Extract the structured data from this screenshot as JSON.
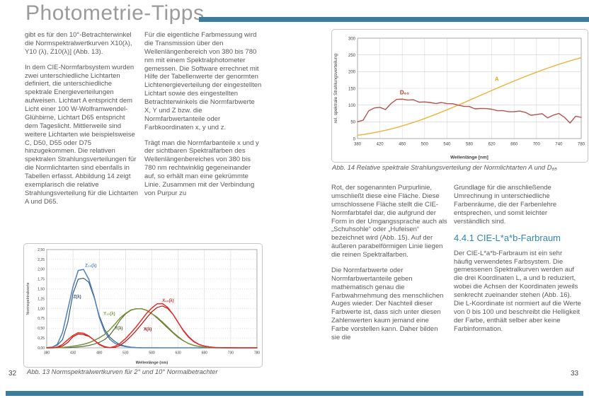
{
  "page_title": "Photometrie-Tipps",
  "accent_color": "#3a7d9d",
  "left_page": {
    "page_number": "32",
    "col1_paragraphs": [
      "gibt es für den 10°-Betrachterwinkel die Normspektralwertkurven X10(λ), Y10 (λ), Z10(λ)] (Abb. 13).",
      "In dem CIE-Normfarbsystem wurden zwei unterschiedliche Lichtarten definiert, die unterschiedliche spektrale Energieverteilungen aufweisen. Lichtart A entspricht dem Licht einer 100 W-Wolframwendel-Glühbirne, Lichtart D65 entspricht dem Tageslicht. Mittlerweile sind weitere Lichtarten wie beispielsweise C, D50, D55 oder D75 hinzugekommen. Die relativen spektralen Strahlungsverteilungen für die Normlichtarten sind ebenfalls in Tabellen erfasst. Abbildung 14 zeigt exemplarisch die relative Strahlungsverteilung für die Lichtarten A und D65."
    ],
    "col2_paragraphs": [
      "Für die eigentliche Farbmessung wird die Transmission über den Wellenlängenbereich von 380 bis 780 nm mit einem Spektralphotometer gemessen. Die Software errechnet mit Hilfe der Tabellenwerte der genormten Lichtenergieverteilung der eingestellten Lichtart sowie des eingestellten Betrachterwinkels die Normfarbwerte X, Y und Z bzw. die Normfarbwertanteile oder Farbkoordinaten x, y und z.",
      "Trägt man die Normfarbanteile x und y der sichtbaren Spektralfarben des Wellenlängenbereiches von 380 bis 780 nm rechtwinklig gegeneinander auf, so erhält man eine gekrümmte Linie. Zusammen mit der Verbindung von Purpur zu"
    ],
    "fig13_caption": "Abb. 13 Normspektralwertkurven für 2° und 10° Normalbetrachter"
  },
  "right_page": {
    "page_number": "33",
    "fig14_caption": "Abb. 14 Relative spektrale Strahlungsverteilung der Normlichtarten A und D₆₅",
    "col1_paragraphs": [
      "Rot, der sogenannten Purpurlinie, umschließt diese eine Fläche. Diese umschlossene Fläche stellt die CIE-Normfarbtafel dar, die aufgrund der Form in der Umgangssprache auch als „Schuhsohle“ oder „Hufeisen“ bezeichnet wird (Abb. 15). Auf der äußeren parabelförmigen Linie liegen die reinen Spektralfarben.",
      "Die Normfarbwerte oder Normfarbwertanteile geben mathematisch genau die Farbwahrnehmung des menschlichen Auges wieder. Der Nachteil dieser Farbwerte ist, dass sich unter diesen Zahlenwerten kaum jemand eine Farbe vorstellen kann. Daher bilden sie die"
    ],
    "col2_paragraphs_before_heading": [
      "Grundlage für die anschließende Umrechnung in unterschiedliche Farbenräume, die der Farbenlehre entsprechen, und somit leichter verständlich sind."
    ],
    "heading": "4.4.1 CIE-L*a*b-Farbraum",
    "col2_paragraphs_after_heading": [
      "Der CIE-L*a*b-Farbraum ist ein sehr häufig verwendetes Farbsystem. Die gemessenen Spektralkurven werden auf die drei Koordinaten L, a und b reduziert, wobei die Achsen der Koordinaten jeweils senkrecht zueinander stehen (Abb. 16). Die L-Koordinate ist normiert auf die Werte von 0 bis 100 und beschreibt die Helligkeit der Farbe, enthält selber aber keine Farbinformation."
    ]
  },
  "chart_data": [
    {
      "mount": "fig13",
      "type": "line",
      "title": "",
      "xlabel": "Wellenlänge (nm)",
      "ylabel": "Normspektralwerte",
      "xlim": [
        380,
        780
      ],
      "xstep": 50,
      "ylim": [
        0,
        2.5
      ],
      "ystep": 0.25,
      "y_decimals": 2,
      "decimal_comma": true,
      "grid": {
        "h": "dotted",
        "v": "solid"
      },
      "style": {
        "tick_font": 5,
        "axis_font": 5.5,
        "anno_font": 6,
        "margins": {
          "l": 32,
          "r": 7,
          "t": 8,
          "b": 27
        }
      },
      "x": [
        380,
        390,
        400,
        410,
        420,
        430,
        440,
        450,
        460,
        470,
        480,
        490,
        500,
        510,
        520,
        530,
        540,
        550,
        560,
        570,
        580,
        590,
        600,
        610,
        620,
        630,
        640,
        650,
        660,
        670,
        680,
        690,
        700,
        710,
        720,
        730,
        740,
        750,
        760,
        770,
        780
      ],
      "series": [
        {
          "name": "Z(λ) 2°",
          "color": "#2c4d75",
          "w": 1.1,
          "values": [
            0.0065,
            0.0201,
            0.0679,
            0.2074,
            0.6456,
            1.3856,
            1.7471,
            1.7721,
            1.6692,
            1.2876,
            0.813,
            0.4652,
            0.272,
            0.1582,
            0.0782,
            0.0422,
            0.0203,
            0.0087,
            0.0039,
            0.0021,
            0.0017,
            0.0011,
            0.0008,
            0.0003,
            0.0002,
            0,
            0,
            0,
            0,
            0,
            0,
            0,
            0,
            0,
            0,
            0,
            0,
            0,
            0,
            0,
            0
          ]
        },
        {
          "name": "Z10(λ) 10°",
          "color": "#4f81bd",
          "w": 1.5,
          "values": [
            0.0007,
            0.0105,
            0.086,
            0.3894,
            0.9725,
            1.5535,
            1.9673,
            1.9948,
            1.7454,
            1.3176,
            0.7721,
            0.4153,
            0.2185,
            0.112,
            0.0607,
            0.0305,
            0.0137,
            0.004,
            0,
            0,
            0,
            0,
            0,
            0,
            0,
            0,
            0,
            0,
            0,
            0,
            0,
            0,
            0,
            0,
            0,
            0,
            0,
            0,
            0,
            0,
            0
          ]
        },
        {
          "name": "Y(λ) 2°",
          "color": "#4f6228",
          "w": 1.1,
          "values": [
            0,
            0.0001,
            0.0004,
            0.0012,
            0.004,
            0.0116,
            0.023,
            0.038,
            0.06,
            0.091,
            0.139,
            0.208,
            0.323,
            0.503,
            0.71,
            0.862,
            0.954,
            0.995,
            0.995,
            0.952,
            0.87,
            0.757,
            0.631,
            0.503,
            0.381,
            0.265,
            0.175,
            0.107,
            0.061,
            0.032,
            0.017,
            0.0082,
            0.0041,
            0.0021,
            0.001,
            0.0005,
            0.0002,
            0.0001,
            0.0001,
            0,
            0
          ]
        },
        {
          "name": "Y10(λ) 10°",
          "color": "#76933c",
          "w": 1.5,
          "values": [
            0,
            0.0003,
            0.002,
            0.0088,
            0.0214,
            0.0387,
            0.0621,
            0.0895,
            0.1282,
            0.1852,
            0.2536,
            0.3391,
            0.4608,
            0.6067,
            0.7618,
            0.8752,
            0.962,
            0.9918,
            0.9973,
            0.9556,
            0.8689,
            0.7774,
            0.6583,
            0.528,
            0.3981,
            0.2835,
            0.1798,
            0.1076,
            0.0603,
            0.0318,
            0.0159,
            0.0077,
            0.0037,
            0.0018,
            0.0008,
            0.0004,
            0.0002,
            0.0001,
            0,
            0,
            0
          ]
        },
        {
          "name": "X(λ) 2°",
          "color": "#c00000",
          "w": 1.1,
          "values": [
            0.0014,
            0.0042,
            0.0143,
            0.0435,
            0.1344,
            0.2839,
            0.3483,
            0.3362,
            0.2908,
            0.1954,
            0.0956,
            0.032,
            0.0049,
            0.0093,
            0.0633,
            0.1655,
            0.2904,
            0.4334,
            0.5945,
            0.7621,
            0.9163,
            1.0263,
            1.0622,
            1.0026,
            0.8544,
            0.6424,
            0.4479,
            0.2835,
            0.1649,
            0.0874,
            0.0468,
            0.0227,
            0.0114,
            0.0058,
            0.0029,
            0.0014,
            0.0007,
            0.0003,
            0.0002,
            0.0001,
            0
          ]
        },
        {
          "name": "X10(λ) 10°",
          "color": "#e32d2d",
          "w": 1.5,
          "values": [
            0.0002,
            0.0024,
            0.0191,
            0.0847,
            0.2045,
            0.3147,
            0.3837,
            0.3707,
            0.3023,
            0.1956,
            0.0805,
            0.0162,
            0.0038,
            0.0375,
            0.1177,
            0.2365,
            0.3768,
            0.5298,
            0.7052,
            0.8787,
            1.0142,
            1.1185,
            1.124,
            1.0305,
            0.8563,
            0.6475,
            0.4316,
            0.2683,
            0.1526,
            0.0813,
            0.0409,
            0.0199,
            0.0096,
            0.0046,
            0.0022,
            0.001,
            0.0005,
            0.0003,
            0.0001,
            0.0001,
            0
          ]
        }
      ],
      "annotations": [
        {
          "text": "Z₁₀(λ)",
          "x": 464,
          "y": 2.06,
          "color": "#4f81bd",
          "bold": true
        },
        {
          "text": "Z(λ)",
          "x": 438,
          "y": 1.27,
          "color": "#2c4d75",
          "bold": true
        },
        {
          "text": "Y₁₀(λ)",
          "x": 499,
          "y": 0.84,
          "color": "#76933c",
          "bold": true
        },
        {
          "text": "Y(λ)",
          "x": 517,
          "y": 0.47,
          "color": "#4f6228",
          "bold": true
        },
        {
          "text": "X₁₀(λ)",
          "x": 611,
          "y": 1.17,
          "color": "#e32d2d",
          "bold": true
        },
        {
          "text": "X(λ)",
          "x": 572,
          "y": 0.44,
          "color": "#c00000",
          "bold": true
        }
      ]
    },
    {
      "mount": "fig14",
      "type": "line",
      "title": "",
      "xlabel": "Wellenlänge [nm]",
      "ylabel": "rel. spektrale Strahlungsverteilung",
      "xlim": [
        380,
        780
      ],
      "xstep": 40,
      "ylim": [
        0,
        300
      ],
      "ystep": 50,
      "y_decimals": 0,
      "decimal_comma": false,
      "grid": {
        "h": "solid",
        "v": "solid"
      },
      "style": {
        "tick_font": 6,
        "axis_font": 6.5,
        "anno_font": 8,
        "margins": {
          "l": 36,
          "r": 9,
          "t": 12,
          "b": 33
        }
      },
      "x": [
        380,
        390,
        400,
        410,
        420,
        430,
        440,
        450,
        460,
        470,
        480,
        490,
        500,
        510,
        520,
        530,
        540,
        550,
        560,
        570,
        580,
        590,
        600,
        610,
        620,
        630,
        640,
        650,
        660,
        670,
        680,
        690,
        700,
        710,
        720,
        730,
        740,
        750,
        760,
        770,
        780
      ],
      "series": [
        {
          "name": "A",
          "color": "#edb23c",
          "w": 1.4,
          "values": [
            9.8,
            12.09,
            14.71,
            17.68,
            20.99,
            24.67,
            28.7,
            33.09,
            37.81,
            42.87,
            48.24,
            53.91,
            59.86,
            66.06,
            72.5,
            79.13,
            85.95,
            92.91,
            100,
            107.18,
            114.44,
            121.73,
            129.04,
            136.35,
            143.62,
            150.84,
            157.98,
            165.03,
            171.96,
            178.77,
            185.43,
            191.93,
            198.26,
            204.41,
            210.36,
            216.12,
            221.67,
            227,
            232.12,
            237.01,
            241.68
          ]
        },
        {
          "name": "D65",
          "color": "#b5534f",
          "w": 1.4,
          "values": [
            49.98,
            54.65,
            82.75,
            91.49,
            93.43,
            86.68,
            104.86,
            117.01,
            117.81,
            114.86,
            115.92,
            108.81,
            109.35,
            107.8,
            104.79,
            107.69,
            104.41,
            104.05,
            100,
            96.33,
            95.79,
            88.69,
            90.01,
            89.6,
            87.7,
            83.29,
            83.7,
            80.03,
            80.21,
            82.28,
            78.28,
            69.72,
            71.61,
            74.35,
            61.6,
            69.89,
            75.09,
            63.59,
            46.42,
            66.81,
            63.38
          ]
        }
      ],
      "annotations": [
        {
          "text": "D₆₅",
          "x": 464,
          "y": 132,
          "color": "#c0392b",
          "bold": true
        },
        {
          "text": "A",
          "x": 629,
          "y": 172,
          "color": "#e8a41e",
          "bold": true
        }
      ]
    }
  ]
}
